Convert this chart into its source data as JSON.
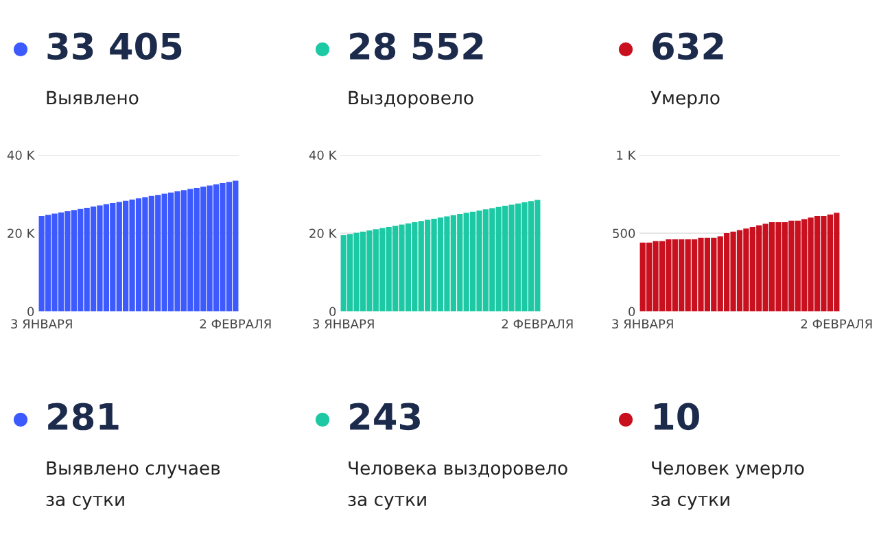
{
  "chart_data": [
    {
      "type": "other",
      "title": "33 405",
      "subtitle": "Выявлено",
      "color": "#3d5afe"
    },
    {
      "type": "other",
      "title": "28 552",
      "subtitle": "Выздоровело",
      "color": "#1dc9a4"
    },
    {
      "type": "other",
      "title": "632",
      "subtitle": "Умерло",
      "color": "#c8101e"
    },
    {
      "type": "bar",
      "categories": [
        "3 ЯНВАРЯ",
        null,
        null,
        null,
        null,
        null,
        null,
        null,
        null,
        null,
        null,
        null,
        null,
        null,
        null,
        null,
        null,
        null,
        null,
        null,
        null,
        null,
        null,
        null,
        null,
        null,
        null,
        null,
        null,
        null,
        "2 ФЕВРАЛЯ"
      ],
      "values": [
        24400,
        24700,
        25000,
        25300,
        25600,
        25900,
        26200,
        26500,
        26800,
        27100,
        27400,
        27700,
        28000,
        28300,
        28600,
        28900,
        29200,
        29500,
        29800,
        30100,
        30400,
        30700,
        31000,
        31300,
        31600,
        31900,
        32200,
        32500,
        32800,
        33100,
        33400
      ],
      "color": "#3d5afe",
      "ylim": [
        0,
        40000
      ],
      "yticks": [
        {
          "value": 0,
          "label": "0"
        },
        {
          "value": 20000,
          "label": "20 K"
        },
        {
          "value": 40000,
          "label": "40 K"
        }
      ],
      "grid": "y"
    },
    {
      "type": "bar",
      "categories": [
        "3 ЯНВАРЯ",
        null,
        null,
        null,
        null,
        null,
        null,
        null,
        null,
        null,
        null,
        null,
        null,
        null,
        null,
        null,
        null,
        null,
        null,
        null,
        null,
        null,
        null,
        null,
        null,
        null,
        null,
        null,
        null,
        null,
        "2 ФЕВРАЛЯ"
      ],
      "values": [
        19500,
        19800,
        20100,
        20400,
        20700,
        21000,
        21300,
        21600,
        21900,
        22200,
        22500,
        22800,
        23100,
        23400,
        23700,
        24000,
        24300,
        24600,
        24900,
        25200,
        25500,
        25800,
        26100,
        26400,
        26700,
        27000,
        27300,
        27600,
        27900,
        28200,
        28500
      ],
      "color": "#1dc9a4",
      "ylim": [
        0,
        40000
      ],
      "yticks": [
        {
          "value": 0,
          "label": "0"
        },
        {
          "value": 20000,
          "label": "20 K"
        },
        {
          "value": 40000,
          "label": "40 K"
        }
      ],
      "grid": "y"
    },
    {
      "type": "bar",
      "categories": [
        "3 ЯНВАРЯ",
        null,
        null,
        null,
        null,
        null,
        null,
        null,
        null,
        null,
        null,
        null,
        null,
        null,
        null,
        null,
        null,
        null,
        null,
        null,
        null,
        null,
        null,
        null,
        null,
        null,
        null,
        null,
        null,
        null,
        "2 ФЕВРАЛЯ"
      ],
      "values": [
        440,
        440,
        450,
        450,
        460,
        460,
        460,
        460,
        460,
        470,
        470,
        470,
        480,
        500,
        510,
        520,
        530,
        540,
        550,
        560,
        570,
        570,
        570,
        580,
        580,
        590,
        600,
        610,
        610,
        620,
        630
      ],
      "color": "#c8101e",
      "ylim": [
        0,
        1000
      ],
      "yticks": [
        {
          "value": 0,
          "label": "0"
        },
        {
          "value": 500,
          "label": "500"
        },
        {
          "value": 1000,
          "label": "1 K"
        }
      ],
      "grid": "y"
    },
    {
      "type": "other",
      "title": "281",
      "subtitle": "Выявлено случаев\nза сутки",
      "color": "#3d5afe"
    },
    {
      "type": "other",
      "title": "243",
      "subtitle": "Человека выздоровело\nза сутки",
      "color": "#1dc9a4"
    },
    {
      "type": "other",
      "title": "10",
      "subtitle": "Человек умерло\nза сутки",
      "color": "#c8101e"
    }
  ]
}
